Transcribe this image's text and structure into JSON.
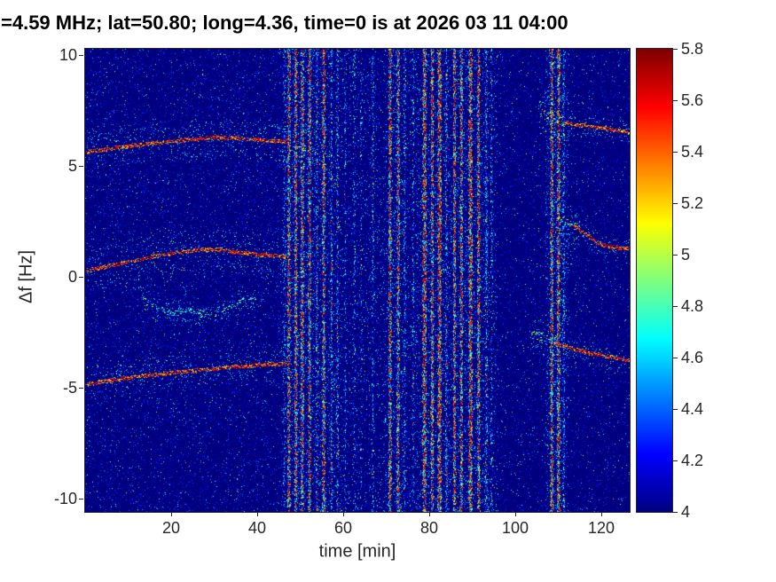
{
  "figure": {
    "title": "=4.59 MHz;  lat=50.80; long=4.36, time=0 is at 2026 03 11 04:00",
    "background": "#ffffff",
    "axis_color": "#262626",
    "title_color": "#000000"
  },
  "axes": {
    "x_tick_labels": [
      "20",
      "40",
      "60",
      "80",
      "100",
      "120"
    ],
    "y_tick_labels": [
      "10",
      "5",
      "0",
      "-5",
      "-10"
    ]
  },
  "chart_data": {
    "type": "heatmap",
    "title": "=4.59 MHz;  lat=50.80; long=4.36, time=0 is at 2026 03 11 04:00",
    "xlabel": "time [min]",
    "ylabel": "Δf [Hz]",
    "xlim": [
      0,
      126.6
    ],
    "ylim": [
      -10.6,
      10.3
    ],
    "x_ticks": [
      20,
      40,
      60,
      80,
      100,
      120
    ],
    "y_ticks": [
      10,
      5,
      0,
      -5,
      -10
    ],
    "grid": false,
    "background_value": 4.0,
    "colorbar": {
      "position": "right",
      "colormap": "jet",
      "min": 4,
      "max": 5.8,
      "tick_labels": [
        "4",
        "4.2",
        "4.4",
        "4.6",
        "4.8",
        "5",
        "5.2",
        "5.4",
        "5.6",
        "5.8"
      ]
    },
    "doppler_traces": [
      {
        "name": "upper-left-trace",
        "points": [
          [
            0.3,
            5.65
          ],
          [
            8,
            5.85
          ],
          [
            16,
            6.05
          ],
          [
            24,
            6.2
          ],
          [
            30,
            6.3
          ],
          [
            36,
            6.25
          ],
          [
            42,
            6.15
          ],
          [
            47,
            6.1
          ]
        ],
        "core": 0.85,
        "core_v": [
          5.15,
          5.8
        ],
        "scatter": 0.55,
        "spread": 0.9,
        "jitter": 0.09
      },
      {
        "name": "upper-left-trace-tail",
        "points": [
          [
            47.5,
            6.0
          ],
          [
            52,
            5.7
          ],
          [
            56.5,
            5.35
          ]
        ],
        "core": 0.12,
        "core_v": [
          4.8,
          5.4
        ],
        "scatter": 0.3,
        "spread": 0.4,
        "jitter": 0.1
      },
      {
        "name": "middle-left-trace",
        "points": [
          [
            0.3,
            0.3
          ],
          [
            7,
            0.55
          ],
          [
            14,
            0.85
          ],
          [
            21,
            1.1
          ],
          [
            27,
            1.25
          ],
          [
            32,
            1.2
          ],
          [
            38,
            1.05
          ],
          [
            43,
            0.95
          ],
          [
            47,
            0.9
          ]
        ],
        "core": 0.8,
        "core_v": [
          5.15,
          5.8
        ],
        "scatter": 0.6,
        "spread": 1.0,
        "jitter": 0.09
      },
      {
        "name": "faint-wiggly-trace",
        "points": [
          [
            13,
            -0.9
          ],
          [
            16,
            -1.35
          ],
          [
            20,
            -1.65
          ],
          [
            24,
            -1.45
          ],
          [
            27,
            -1.8
          ],
          [
            31,
            -1.65
          ],
          [
            34,
            -1.3
          ],
          [
            37,
            -1.05
          ],
          [
            39.5,
            -0.95
          ]
        ],
        "core": 0.25,
        "core_v": [
          4.5,
          5.05
        ],
        "scatter": 0.5,
        "spread": 0.5,
        "jitter": 0.12
      },
      {
        "name": "lower-left-trace",
        "points": [
          [
            0.3,
            -4.85
          ],
          [
            8,
            -4.6
          ],
          [
            16,
            -4.4
          ],
          [
            24,
            -4.25
          ],
          [
            32,
            -4.1
          ],
          [
            40,
            -3.98
          ],
          [
            47,
            -3.9
          ]
        ],
        "core": 0.85,
        "core_v": [
          5.15,
          5.8
        ],
        "scatter": 0.5,
        "spread": 0.8,
        "jitter": 0.09
      },
      {
        "name": "upper-right-cluster",
        "points": [
          [
            105.5,
            7.5
          ],
          [
            108,
            7.25
          ],
          [
            111,
            7.0
          ]
        ],
        "core": 0.35,
        "core_v": [
          4.6,
          5.4
        ],
        "scatter": 0.9,
        "spread": 1.1,
        "jitter": 0.25
      },
      {
        "name": "upper-right-trace",
        "points": [
          [
            111,
            6.95
          ],
          [
            115,
            6.85
          ],
          [
            120,
            6.72
          ],
          [
            124,
            6.6
          ],
          [
            126.6,
            6.5
          ]
        ],
        "core": 0.8,
        "core_v": [
          5.1,
          5.8
        ],
        "scatter": 0.45,
        "spread": 0.5,
        "jitter": 0.09
      },
      {
        "name": "middle-right-cluster",
        "points": [
          [
            109.5,
            2.75
          ],
          [
            112,
            2.5
          ],
          [
            115,
            2.2
          ]
        ],
        "core": 0.3,
        "core_v": [
          4.55,
          5.2
        ],
        "scatter": 0.9,
        "spread": 0.9,
        "jitter": 0.25
      },
      {
        "name": "middle-right-trace",
        "points": [
          [
            113.5,
            2.35
          ],
          [
            116.5,
            1.9
          ],
          [
            119.5,
            1.5
          ],
          [
            122.5,
            1.35
          ],
          [
            126.6,
            1.28
          ]
        ],
        "core": 0.85,
        "core_v": [
          5.15,
          5.8
        ],
        "scatter": 0.4,
        "spread": 0.45,
        "jitter": 0.09
      },
      {
        "name": "lower-right-cluster",
        "points": [
          [
            103.5,
            -2.55
          ],
          [
            106.5,
            -2.75
          ],
          [
            109.5,
            -2.95
          ]
        ],
        "core": 0.3,
        "core_v": [
          4.55,
          5.2
        ],
        "scatter": 0.8,
        "spread": 0.8,
        "jitter": 0.25
      },
      {
        "name": "lower-right-trace",
        "points": [
          [
            109,
            -3.0
          ],
          [
            113.5,
            -3.25
          ],
          [
            118,
            -3.45
          ],
          [
            122,
            -3.6
          ],
          [
            126.6,
            -3.78
          ]
        ],
        "core": 0.85,
        "core_v": [
          5.15,
          5.8
        ],
        "scatter": 0.4,
        "spread": 0.5,
        "jitter": 0.09
      }
    ],
    "interference_stripes": [
      {
        "t": 46.3,
        "w": 2,
        "d": 0.18,
        "hot": 0.04
      },
      {
        "t": 47.4,
        "w": 3,
        "d": 0.8,
        "hot": 0.5
      },
      {
        "t": 49.0,
        "w": 3,
        "d": 0.85,
        "hot": 0.55
      },
      {
        "t": 50.5,
        "w": 3,
        "d": 0.8,
        "hot": 0.5
      },
      {
        "t": 52.2,
        "w": 3,
        "d": 0.75,
        "hot": 0.45
      },
      {
        "t": 53.9,
        "w": 2,
        "d": 0.45,
        "hot": 0.18
      },
      {
        "t": 55.5,
        "w": 3,
        "d": 0.8,
        "hot": 0.5
      },
      {
        "t": 57.3,
        "w": 2,
        "d": 0.5,
        "hot": 0.14
      },
      {
        "t": 58.7,
        "w": 2,
        "d": 0.45,
        "hot": 0.12
      },
      {
        "t": 60.5,
        "w": 2,
        "d": 0.2,
        "hot": 0.05
      },
      {
        "t": 62.6,
        "w": 2,
        "d": 0.22,
        "hot": 0.04
      },
      {
        "t": 64.2,
        "w": 2,
        "d": 0.15,
        "hot": 0.03
      },
      {
        "t": 66.9,
        "w": 2,
        "d": 0.3,
        "hot": 0.07
      },
      {
        "t": 70.9,
        "w": 3,
        "d": 0.8,
        "hot": 0.5
      },
      {
        "t": 72.8,
        "w": 3,
        "d": 0.75,
        "hot": 0.45
      },
      {
        "t": 74.3,
        "w": 2,
        "d": 0.35,
        "hot": 0.1
      },
      {
        "t": 76.3,
        "w": 2,
        "d": 0.3,
        "hot": 0.08
      },
      {
        "t": 78.9,
        "w": 4,
        "d": 0.85,
        "hot": 0.58
      },
      {
        "t": 80.7,
        "w": 3,
        "d": 0.8,
        "hot": 0.5
      },
      {
        "t": 82.4,
        "w": 4,
        "d": 0.9,
        "hot": 0.62
      },
      {
        "t": 84.0,
        "w": 2,
        "d": 0.5,
        "hot": 0.2
      },
      {
        "t": 85.9,
        "w": 3,
        "d": 0.85,
        "hot": 0.55
      },
      {
        "t": 87.5,
        "w": 3,
        "d": 0.8,
        "hot": 0.5
      },
      {
        "t": 89.6,
        "w": 4,
        "d": 0.88,
        "hot": 0.6
      },
      {
        "t": 91.5,
        "w": 3,
        "d": 0.8,
        "hot": 0.5
      },
      {
        "t": 93.3,
        "w": 2,
        "d": 0.5,
        "hot": 0.14
      },
      {
        "t": 94.5,
        "w": 2,
        "d": 0.25,
        "hot": 0.05
      },
      {
        "t": 108.5,
        "w": 3,
        "d": 0.85,
        "hot": 0.55
      },
      {
        "t": 110.1,
        "w": 3,
        "d": 0.85,
        "hot": 0.55
      },
      {
        "t": 111.3,
        "w": 2,
        "d": 0.4,
        "hot": 0.1
      }
    ],
    "noise": {
      "levels": [
        {
          "count": 20000,
          "vmin": 4.02,
          "vmax": 4.4
        },
        {
          "count": 2600,
          "vmin": 4.45,
          "vmax": 4.95
        },
        {
          "count": 320,
          "vmin": 4.95,
          "vmax": 5.35
        }
      ],
      "regions": [
        {
          "t0": 46,
          "t1": 96,
          "count": 5200,
          "vmin": 4.05,
          "vmax": 4.8
        },
        {
          "t0": 107,
          "t1": 112.5,
          "count": 900,
          "vmin": 4.05,
          "vmax": 4.8
        },
        {
          "t0": 0,
          "t1": 47,
          "count": 2500,
          "vmin": 4.03,
          "vmax": 4.6
        }
      ]
    }
  }
}
